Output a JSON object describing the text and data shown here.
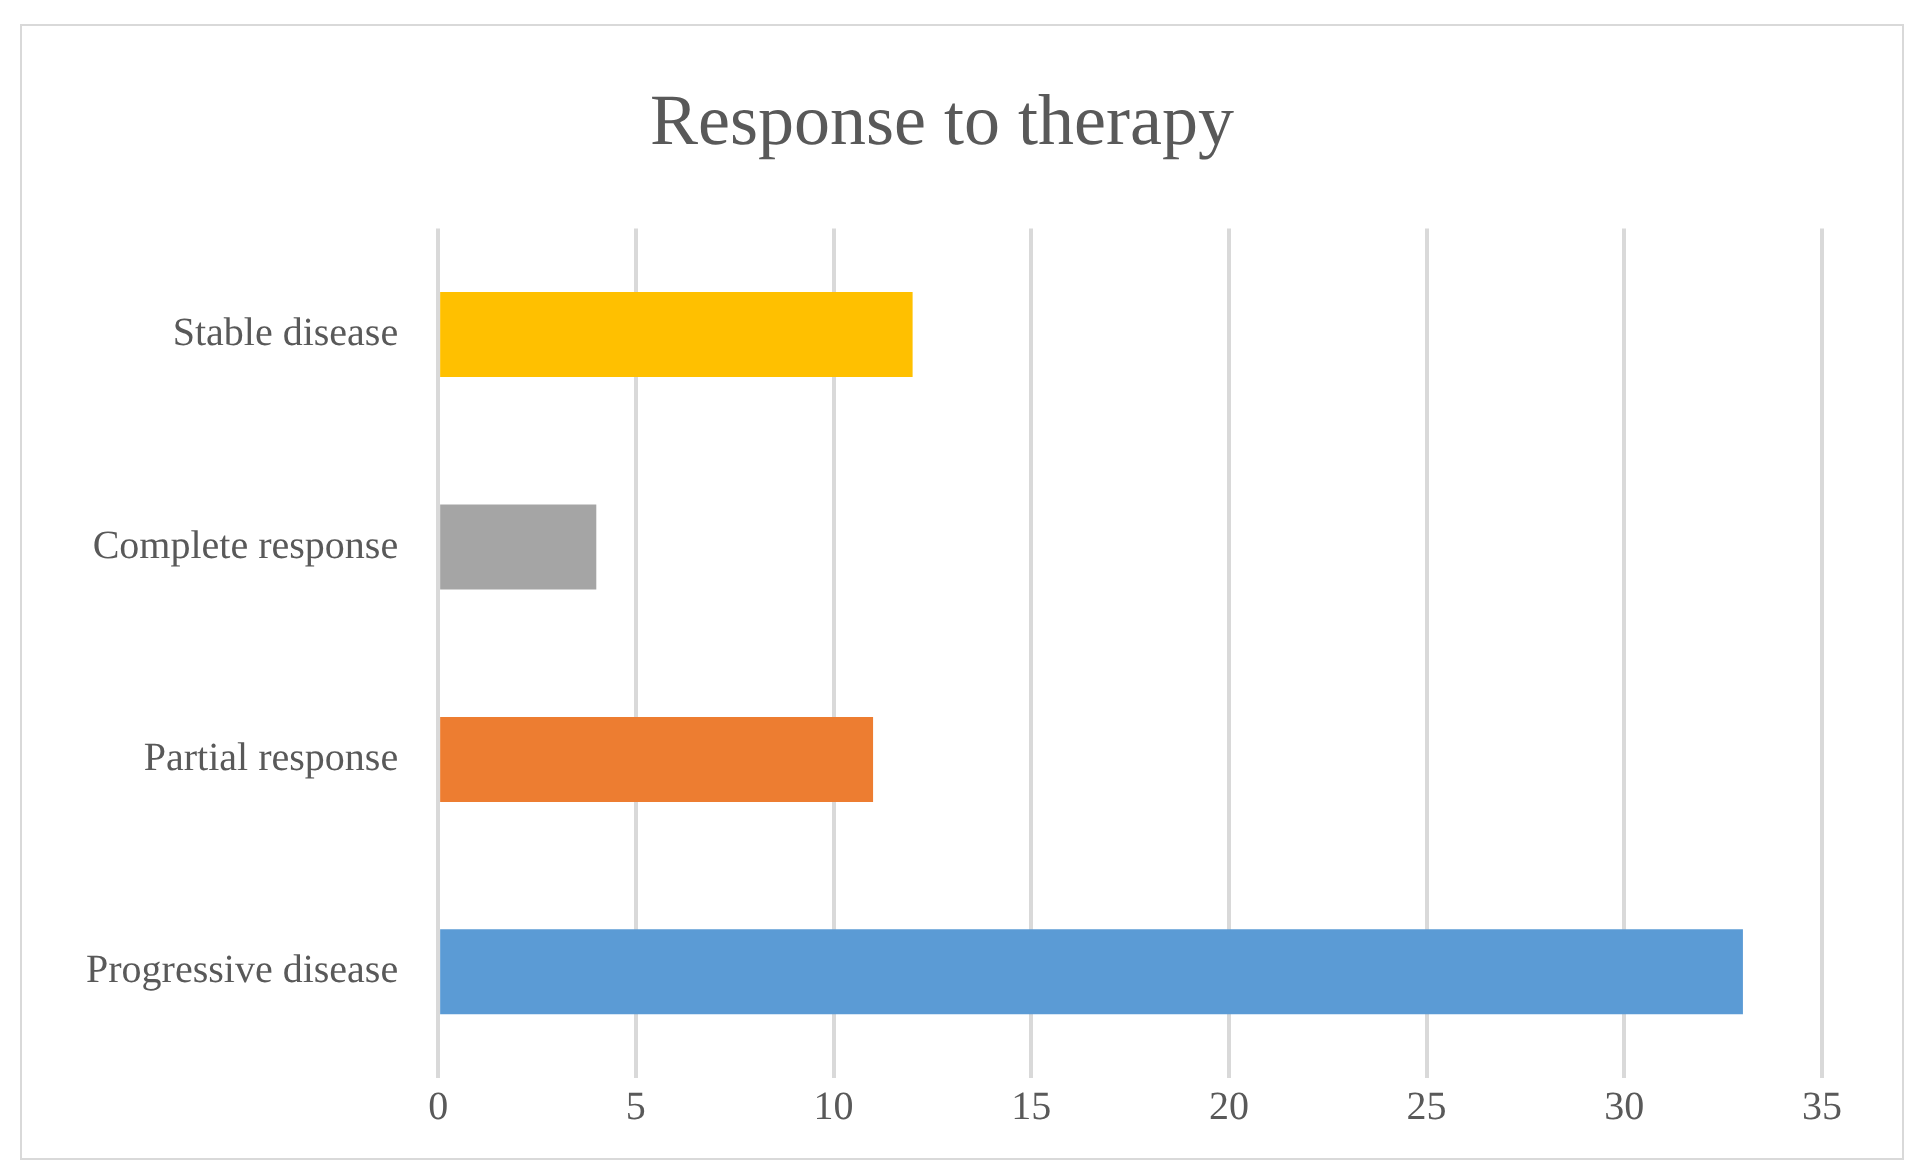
{
  "chart_data": {
    "type": "bar",
    "orientation": "horizontal",
    "title": "Response to therapy",
    "categories": [
      "Stable disease",
      "Complete response",
      "Partial response",
      "Progressive disease"
    ],
    "values": [
      12,
      4,
      11,
      33
    ],
    "colors": [
      "#ffc000",
      "#a5a5a5",
      "#ed7d31",
      "#5b9bd5"
    ],
    "xlim": [
      0,
      35
    ],
    "xticks": [
      0,
      5,
      10,
      15,
      20,
      25,
      30,
      35
    ],
    "grid": "x",
    "legend": false
  }
}
